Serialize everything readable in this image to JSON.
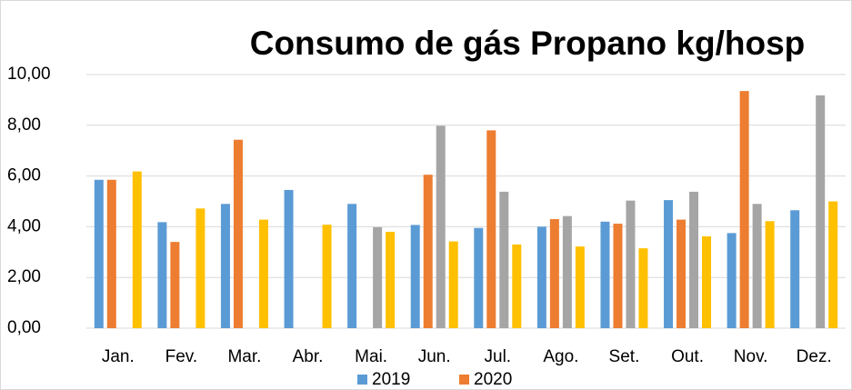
{
  "chart_data": {
    "type": "bar",
    "title": "Consumo de gás Propano kg/hosp",
    "categories": [
      "Jan.",
      "Fev.",
      "Mar.",
      "Abr.",
      "Mai.",
      "Jun.",
      "Jul.",
      "Ago.",
      "Set.",
      "Out.",
      "Nov.",
      "Dez."
    ],
    "series": [
      {
        "name": "2019",
        "color": "#5b9bd5",
        "values": [
          5.85,
          4.18,
          4.9,
          5.45,
          4.9,
          4.07,
          3.95,
          4.0,
          4.2,
          5.05,
          3.75,
          4.65
        ]
      },
      {
        "name": "2020",
        "color": "#ed7d31",
        "values": [
          5.85,
          3.4,
          7.43,
          null,
          null,
          6.05,
          7.8,
          4.3,
          4.12,
          4.28,
          9.35,
          null
        ]
      },
      {
        "color": "#a5a5a5",
        "values": [
          null,
          null,
          null,
          null,
          3.98,
          7.98,
          5.38,
          4.42,
          5.03,
          5.38,
          4.9,
          9.18
        ]
      },
      {
        "color": "#ffc000",
        "values": [
          6.18,
          4.72,
          4.28,
          4.08,
          3.8,
          3.42,
          3.3,
          3.22,
          3.15,
          3.62,
          4.22,
          5.0
        ]
      }
    ],
    "ylim": [
      0,
      10
    ],
    "yticks": [
      {
        "value": 0,
        "label": "0,00"
      },
      {
        "value": 2,
        "label": "2,00"
      },
      {
        "value": 4,
        "label": "4,00"
      },
      {
        "value": 6,
        "label": "6,00"
      },
      {
        "value": 8,
        "label": "8,00"
      },
      {
        "value": 10,
        "label": "10,00"
      }
    ],
    "grid": true
  }
}
